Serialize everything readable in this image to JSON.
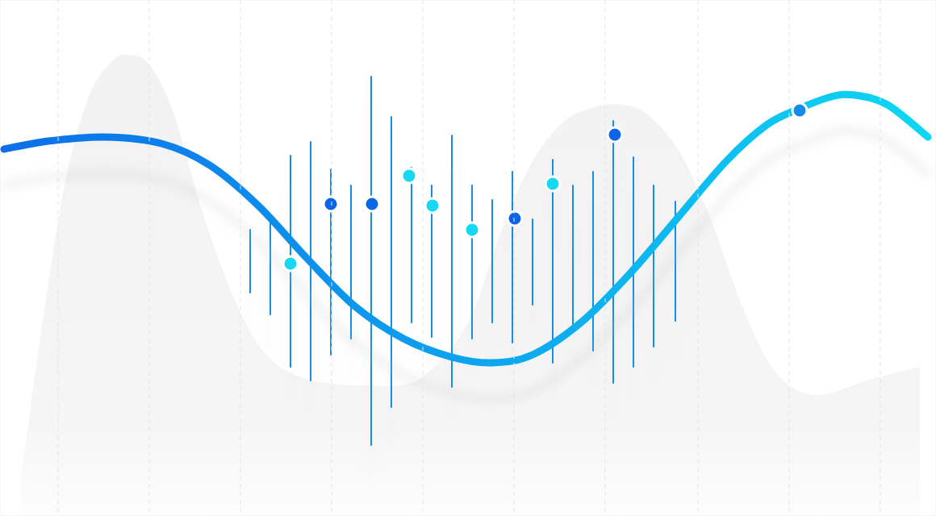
{
  "chart_data": {
    "type": "line",
    "xlim": [
      0,
      116
    ],
    "ylim": [
      0,
      64
    ],
    "xticks": [
      7.2,
      18.5,
      29.8,
      41.1,
      52.4,
      63.7,
      75,
      86.5,
      97.8,
      109.1
    ],
    "yticks": [],
    "grid": true,
    "tick_labels": false,
    "series": [
      {
        "type": "area",
        "color": "#f2f2f2",
        "x": [
          2.5,
          5,
          8,
          11,
          14,
          16,
          18.5,
          21.5,
          25,
          29,
          33,
          38,
          45,
          52,
          58,
          62,
          66,
          70,
          74,
          77,
          80,
          84,
          88,
          92,
          96,
          101,
          108,
          114
        ],
        "values": [
          4,
          22,
          41,
          52,
          56.5,
          57.2,
          56,
          50,
          38,
          27,
          20,
          17,
          16.2,
          17,
          24,
          35,
          44,
          49,
          50.8,
          51,
          50,
          45.5,
          37,
          26,
          18,
          15,
          17,
          18.5
        ]
      },
      {
        "type": "line",
        "colors": [
          "#0a6ee8",
          "#0ad8f4"
        ],
        "x": [
          0.5,
          6,
          13,
          20,
          26,
          32,
          38,
          44,
          50,
          56,
          61,
          66,
          72,
          78,
          84,
          90,
          95,
          99,
          103,
          106,
          110,
          115
        ],
        "values": [
          45.5,
          46.5,
          47,
          46.2,
          43.5,
          38.5,
          32,
          26,
          22,
          19.7,
          19,
          20,
          24,
          30,
          37,
          44,
          48.5,
          50.5,
          52,
          52.2,
          51,
          47
        ]
      },
      {
        "type": "range",
        "color": "#168ee6",
        "x": [
          31,
          33.5,
          36,
          38.5,
          41,
          43.5,
          46,
          48.5,
          51,
          53.5,
          56,
          58.5,
          61,
          63.5,
          66,
          68.5,
          71,
          73.5,
          76,
          78.5,
          81,
          83.7
        ],
        "low": [
          27.7,
          25,
          18.5,
          16.8,
          20,
          22,
          8.8,
          13.5,
          24,
          22.2,
          16,
          22,
          24,
          21.5,
          26.2,
          19,
          23,
          20.5,
          16.5,
          18.5,
          21,
          24.2
        ],
        "values": [
          35.5,
          37.2,
          44.7,
          46.4,
          43,
          41,
          54.5,
          49.5,
          43.2,
          41,
          47.2,
          41,
          39.2,
          42.7,
          36.8,
          44.2,
          41,
          42.7,
          49,
          44.5,
          41,
          39
        ]
      },
      {
        "type": "scatter",
        "marker": "circle",
        "colors": [
          "#16d8f2",
          "#0a66e6",
          "#0a66e6",
          "#16d8f2",
          "#16d8f2",
          "#16d8f2",
          "#0a66e6",
          "#16d8f2",
          "#0a66e6",
          "#168ae8"
        ],
        "x": [
          36,
          41,
          46.1,
          50.7,
          53.6,
          58.5,
          63.8,
          68.5,
          76.2,
          99.1
        ],
        "values": [
          31.3,
          38.7,
          38.7,
          42.2,
          38.5,
          35.5,
          36.9,
          41.2,
          47.3,
          50.3
        ]
      }
    ]
  }
}
